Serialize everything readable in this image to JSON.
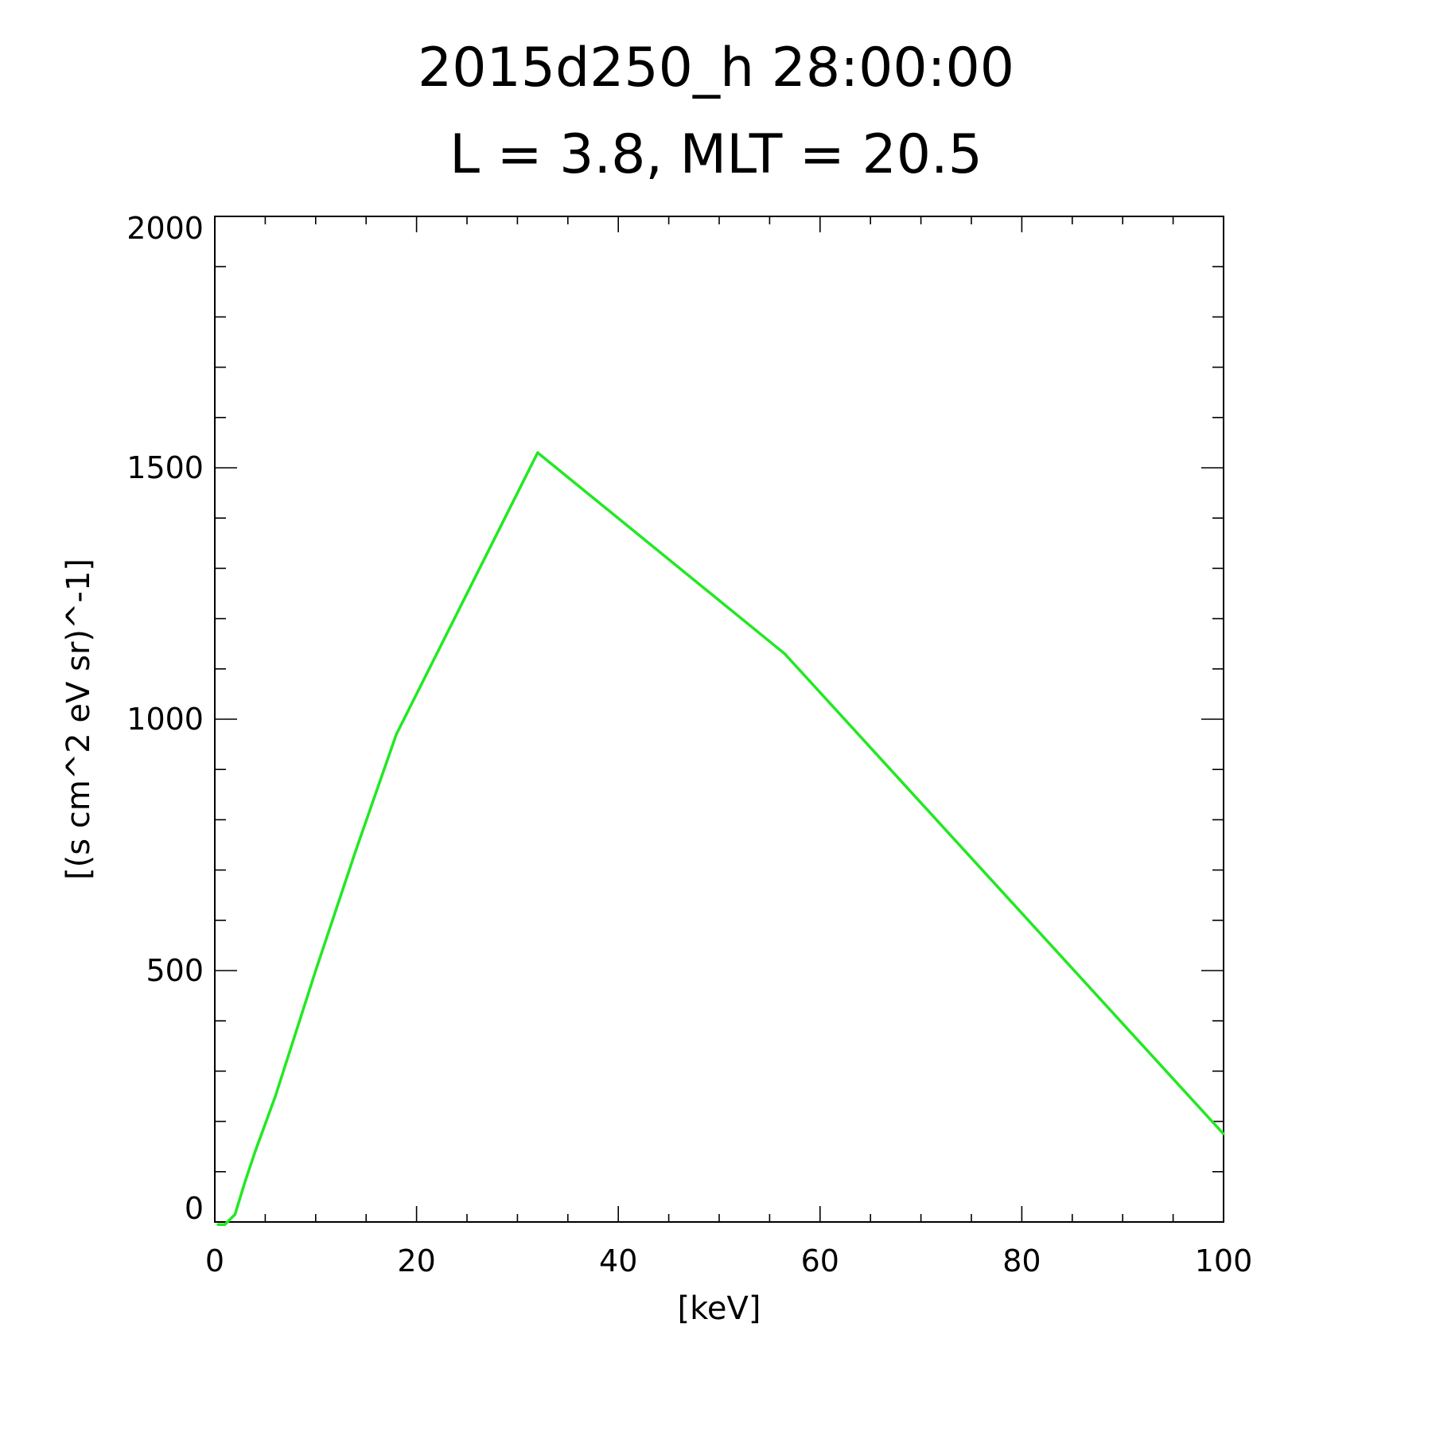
{
  "chart_data": {
    "type": "line",
    "title": "2015d250_h   28:00:00",
    "subtitle": "L = 3.8, MLT = 20.5",
    "xlabel": "[keV]",
    "ylabel": "[(s cm^2 eV sr)^-1]",
    "xlim": [
      0,
      100
    ],
    "ylim": [
      0,
      2000
    ],
    "x_ticks": [
      "0",
      "20",
      "40",
      "60",
      "80",
      "100"
    ],
    "y_ticks": [
      "0",
      "500",
      "1000",
      "1500",
      "2000"
    ],
    "grid": false,
    "legend": "none",
    "line_color": "#22e822",
    "series": [
      {
        "x": [
          0.3,
          1.0,
          2.0,
          3.0,
          4.0,
          6.0,
          10.0,
          14.0,
          18.0,
          32.0,
          56.5,
          100.0
        ],
        "values": [
          -5,
          -5,
          15,
          80,
          140,
          250,
          500,
          740,
          970,
          1530,
          1130,
          175
        ]
      }
    ]
  }
}
